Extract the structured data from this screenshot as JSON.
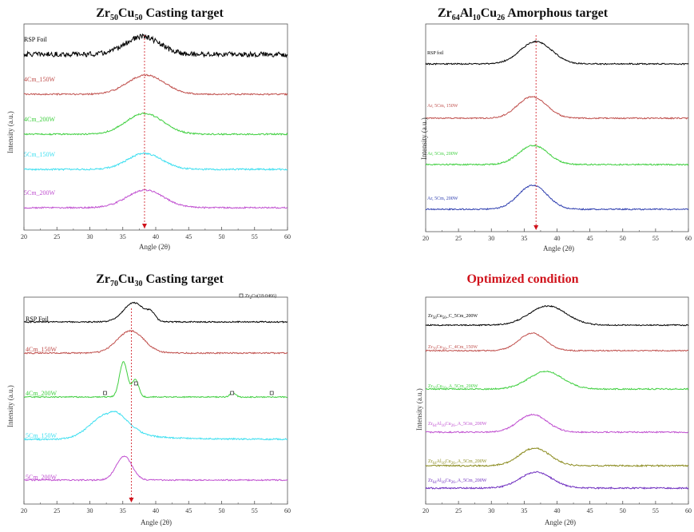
{
  "chart_data": [
    {
      "type": "line",
      "title": "Zr50Cu50 Casting target",
      "title_parts": [
        [
          "Zr",
          ""
        ],
        [
          "50",
          "sub"
        ],
        [
          "Cu",
          ""
        ],
        [
          "50",
          "sub"
        ],
        [
          " Casting target",
          ""
        ]
      ],
      "xlabel": "Angle (2θ)",
      "ylabel": "Intensity (a.u.)",
      "xlim": [
        20,
        60
      ],
      "xticks": [
        20,
        25,
        30,
        35,
        40,
        45,
        50,
        55,
        60
      ],
      "reference_line_x": 38.3,
      "series": [
        {
          "name": "RSP Foil",
          "color": "#000000",
          "peak": 38.0,
          "width": 2.6,
          "amp": 22,
          "noise": 3.2
        },
        {
          "name": "4Cm_150W",
          "color": "#c0504d",
          "peak": 38.5,
          "width": 2.8,
          "amp": 24,
          "noise": 0.9
        },
        {
          "name": "4Cm_200W",
          "color": "#3fcf3f",
          "peak": 38.3,
          "width": 2.8,
          "amp": 26,
          "noise": 0.9
        },
        {
          "name": "5Cm_150W",
          "color": "#3fdff0",
          "peak": 38.3,
          "width": 2.6,
          "amp": 20,
          "noise": 1.0
        },
        {
          "name": "5Cm_200W",
          "color": "#c050d0",
          "peak": 38.4,
          "width": 2.8,
          "amp": 22,
          "noise": 0.9
        }
      ]
    },
    {
      "type": "line",
      "title": "Zr64Al10Cu26 Amorphous target",
      "title_parts": [
        [
          "Zr",
          ""
        ],
        [
          "64",
          "sub"
        ],
        [
          "Al",
          ""
        ],
        [
          "10",
          "sub"
        ],
        [
          "Cu",
          ""
        ],
        [
          "26",
          "sub"
        ],
        [
          " Amorphous target",
          ""
        ]
      ],
      "xlabel": "Angle (2θ)",
      "ylabel": "Intensity (a.u.)",
      "xlim": [
        20,
        60
      ],
      "xticks": [
        20,
        25,
        30,
        35,
        40,
        45,
        50,
        55,
        60
      ],
      "reference_line_x": 36.8,
      "series": [
        {
          "name": "RSP foil",
          "color": "#000000",
          "peak": 36.8,
          "width": 2.4,
          "amp": 28,
          "noise": 0.8
        },
        {
          "name": "Ar, 5Cm, 150W",
          "color": "#c0504d",
          "peak": 36.2,
          "width": 2.2,
          "amp": 27,
          "noise": 0.8
        },
        {
          "name": "Ar, 5Cm, 200W",
          "color": "#3fcf3f",
          "peak": 36.4,
          "width": 2.2,
          "amp": 24,
          "noise": 0.8
        },
        {
          "name": "Ar, 5Cm, 200W",
          "color": "#3040b0",
          "peak": 36.3,
          "width": 2.2,
          "amp": 30,
          "noise": 0.8
        }
      ]
    },
    {
      "type": "line",
      "title": "Zr70Cu30 Casting target",
      "title_parts": [
        [
          "Zr",
          ""
        ],
        [
          "70",
          "sub"
        ],
        [
          "Cu",
          ""
        ],
        [
          "30",
          "sub"
        ],
        [
          " Casting target",
          ""
        ]
      ],
      "xlabel": "Angle (2θ)",
      "ylabel": "Intensity (a.u.)",
      "xlim": [
        20,
        60
      ],
      "xticks": [
        20,
        25,
        30,
        35,
        40,
        45,
        50,
        55,
        60
      ],
      "reference_line_x": 36.3,
      "legend": "Zr2Cu(18-0466)",
      "legend_parts": [
        [
          "Zr",
          ""
        ],
        [
          "2",
          "sub"
        ],
        [
          "Cu(18-0466)",
          ""
        ]
      ],
      "markers": [
        {
          "x": 32.3,
          "series": 2
        },
        {
          "x": 37.0,
          "series": 2
        },
        {
          "x": 51.6,
          "series": 2
        },
        {
          "x": 57.6,
          "series": 2
        }
      ],
      "series": [
        {
          "name": "RSP Foil",
          "color": "#000000",
          "peak": 36.7,
          "width": 1.6,
          "amp": 24,
          "noise": 0.8,
          "extra": [
            {
              "peak": 39.3,
              "width": 0.6,
              "amp": 8
            }
          ]
        },
        {
          "name": "4Cm_150W",
          "color": "#c0504d",
          "peak": 36.2,
          "width": 2.0,
          "amp": 28,
          "noise": 0.8
        },
        {
          "name": "4Cm_200W",
          "color": "#3fcf3f",
          "peak": 35.1,
          "width": 0.6,
          "amp": 44,
          "noise": 0.7,
          "extra": [
            {
              "peak": 36.9,
              "width": 0.5,
              "amp": 22
            },
            {
              "peak": 51.7,
              "width": 0.4,
              "amp": 6
            }
          ]
        },
        {
          "name": "5Cm_150W",
          "color": "#3fdff0",
          "peak": 32.8,
          "width": 2.6,
          "amp": 32,
          "noise": 0.9,
          "tail": 10
        },
        {
          "name": "5Cm_200W",
          "color": "#c050d0",
          "peak": 35.2,
          "width": 1.2,
          "amp": 30,
          "noise": 0.8
        }
      ]
    },
    {
      "type": "line",
      "title": "Optimized condition",
      "xlabel": "Angle (2θ)",
      "ylabel": "Intensity (a.u.)",
      "xlim": [
        20,
        60
      ],
      "xticks": [
        20,
        25,
        30,
        35,
        40,
        45,
        50,
        55,
        60
      ],
      "series": [
        {
          "name": "Zr50Cu50_C_5Cm_200W",
          "parts": [
            [
              "Zr",
              ""
            ],
            [
              "50",
              "sub"
            ],
            [
              "Cu",
              ""
            ],
            [
              "50",
              "sub"
            ],
            [
              "_C_5Cm_200W",
              ""
            ]
          ],
          "color": "#000000",
          "peak": 38.6,
          "width": 2.8,
          "amp": 24,
          "noise": 0.7
        },
        {
          "name": "Zr70Cu30_C_4Cm_150W",
          "parts": [
            [
              "Zr",
              ""
            ],
            [
              "70",
              "sub"
            ],
            [
              "Cu",
              ""
            ],
            [
              "30",
              "sub"
            ],
            [
              "_C_4Cm_150W",
              ""
            ]
          ],
          "color": "#c0504d",
          "peak": 36.2,
          "width": 2.0,
          "amp": 22,
          "noise": 0.7
        },
        {
          "name": "Zr50Cu50_A_5Cm_200W",
          "parts": [
            [
              "Zr",
              ""
            ],
            [
              "50",
              "sub"
            ],
            [
              "Cu",
              ""
            ],
            [
              "50",
              "sub"
            ],
            [
              "_A_5Cm_200W",
              ""
            ]
          ],
          "color": "#3fcf3f",
          "peak": 38.3,
          "width": 2.6,
          "amp": 22,
          "noise": 0.8
        },
        {
          "name": "Zr64Al10Cu26_A_5Cm_200W",
          "parts": [
            [
              "Zr",
              ""
            ],
            [
              "64",
              "sub"
            ],
            [
              "Al",
              ""
            ],
            [
              "10",
              "sub"
            ],
            [
              "Cu",
              ""
            ],
            [
              "26",
              "sub"
            ],
            [
              "_A_5Cm_200W",
              ""
            ]
          ],
          "color": "#c050d0",
          "peak": 36.3,
          "width": 2.2,
          "amp": 22,
          "noise": 0.8
        },
        {
          "name": "Zr64Al10Cu26_A_5Cm_200W",
          "parts": [
            [
              "Zr",
              ""
            ],
            [
              "64",
              "sub"
            ],
            [
              "Al",
              ""
            ],
            [
              "10",
              "sub"
            ],
            [
              "Cu",
              ""
            ],
            [
              "26",
              "sub"
            ],
            [
              "_A_5Cm_200W",
              ""
            ]
          ],
          "color": "#8c8c20",
          "peak": 36.6,
          "width": 2.3,
          "amp": 22,
          "noise": 0.9
        },
        {
          "name": "Zr64Al10Cu26_A_5Cm_200W",
          "parts": [
            [
              "Zr",
              ""
            ],
            [
              "64",
              "sub"
            ],
            [
              "Al",
              ""
            ],
            [
              "10",
              "sub"
            ],
            [
              "Cu",
              ""
            ],
            [
              "26",
              "sub"
            ],
            [
              "_A_5Cm_200W",
              ""
            ]
          ],
          "color": "#7030c0",
          "peak": 36.8,
          "width": 2.4,
          "amp": 20,
          "noise": 0.9
        }
      ]
    }
  ]
}
